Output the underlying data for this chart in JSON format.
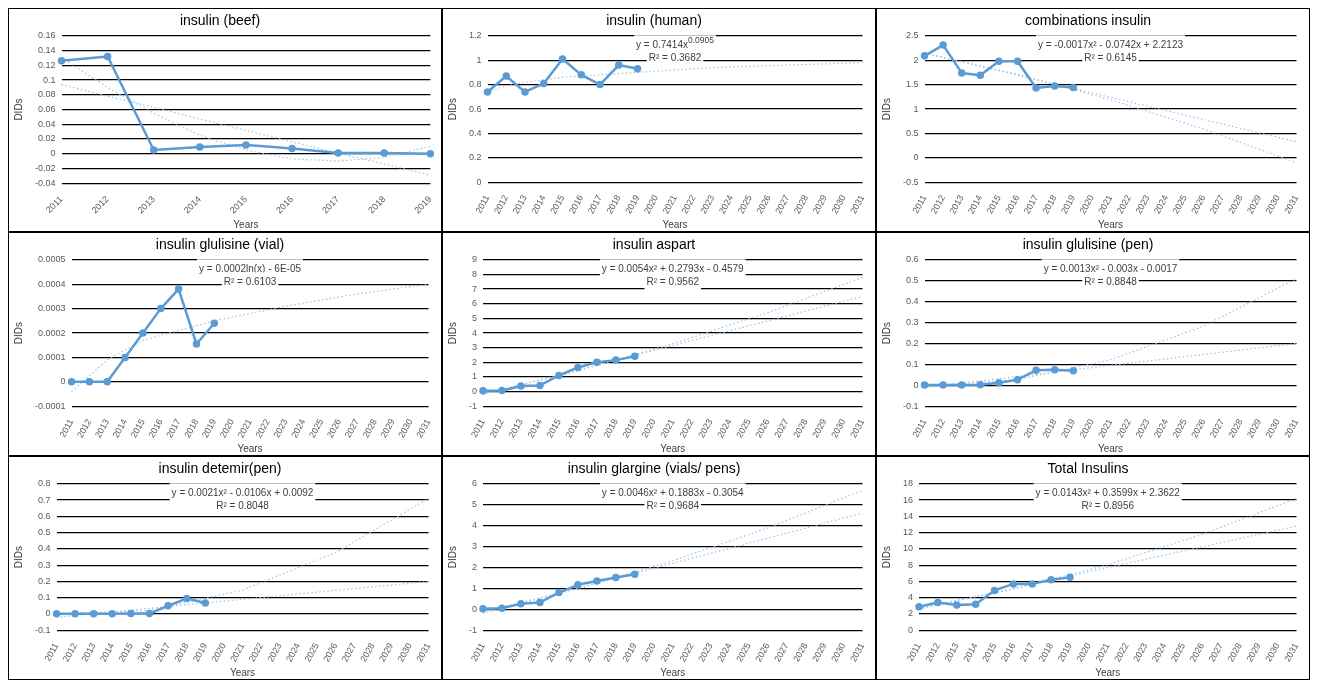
{
  "chart_data": [
    {
      "type": "line",
      "title": "insulin (beef)",
      "xlabel": "Years",
      "ylabel": "DIDs",
      "grid": "y",
      "legend": false,
      "categories": [
        "2011",
        "2012",
        "2013",
        "2014",
        "2015",
        "2016",
        "2017",
        "2018",
        "2019"
      ],
      "ylim": [
        -0.04,
        0.16
      ],
      "yticks": [
        -0.04,
        -0.02,
        0,
        0.02,
        0.04,
        0.06,
        0.08,
        0.1,
        0.12,
        0.14,
        0.16
      ],
      "series": [
        {
          "color": "#5b9bd5",
          "marker": "circle",
          "line_style": "solid",
          "values": [
            0.126,
            0.132,
            0.005,
            0.009,
            0.012,
            0.007,
            0.001,
            0.001,
            0
          ]
        },
        {
          "type": "line",
          "color": "#9dc3e6",
          "marker": "none",
          "line_style": "dotted",
          "values": [
            0.13,
            0.09,
            0.055,
            0.025,
            0.005,
            -0.007,
            -0.01,
            -0.005,
            0.01
          ]
        },
        {
          "type": "line",
          "color": "#9dc3e6",
          "marker": "none",
          "line_style": "dotted",
          "values": [
            0.094,
            0.078,
            0.063,
            0.047,
            0.032,
            0.016,
            0.001,
            -0.014,
            -0.029
          ]
        }
      ]
    },
    {
      "type": "line",
      "title": "insulin (human)",
      "xlabel": "Years",
      "ylabel": "DIDs",
      "grid": "y",
      "legend": false,
      "categories": [
        "2011",
        "2012",
        "2013",
        "2014",
        "2015",
        "2016",
        "2017",
        "2018",
        "2019",
        "2020",
        "2021",
        "2022",
        "2023",
        "2024",
        "2025",
        "2026",
        "2027",
        "2028",
        "2029",
        "2030",
        "2031"
      ],
      "ylim": [
        0,
        1.2
      ],
      "yticks": [
        0,
        0.2,
        0.4,
        0.6,
        0.8,
        1,
        1.2
      ],
      "annotations": [
        "y = 0.7414x$^{0.0905}$",
        "R² = 0.3682"
      ],
      "series": [
        {
          "color": "#5b9bd5",
          "marker": "circle",
          "line_style": "solid",
          "values": [
            0.74,
            0.87,
            0.74,
            0.81,
            1.01,
            0.88,
            0.8,
            0.96,
            0.93,
            null,
            null,
            null,
            null,
            null,
            null,
            null,
            null,
            null,
            null,
            null,
            null
          ]
        },
        {
          "type": "line",
          "color": "#9dc3e6",
          "marker": "none",
          "line_style": "dotted",
          "values": [
            0.74,
            0.79,
            0.82,
            null,
            0.86,
            null,
            null,
            null,
            0.9,
            null,
            null,
            null,
            0.94,
            null,
            null,
            null,
            null,
            null,
            null,
            null,
            0.98
          ]
        }
      ]
    },
    {
      "type": "line",
      "title": "combinations insulin",
      "xlabel": "Years",
      "ylabel": "DIDs",
      "grid": "y",
      "legend": false,
      "categories": [
        "2011",
        "2012",
        "2013",
        "2014",
        "2015",
        "2016",
        "2017",
        "2018",
        "2019",
        "2020",
        "2021",
        "2022",
        "2023",
        "2024",
        "2025",
        "2026",
        "2027",
        "2028",
        "2029",
        "2030",
        "2031"
      ],
      "ylim": [
        -0.5,
        2.5
      ],
      "yticks": [
        -0.5,
        0,
        0.5,
        1,
        1.5,
        2,
        2.5
      ],
      "annotations": [
        "y = -0.0017x² - 0.0742x + 2.2123",
        "R² = 0.6145"
      ],
      "series": [
        {
          "color": "#5b9bd5",
          "marker": "circle",
          "line_style": "solid",
          "values": [
            2.09,
            2.31,
            1.74,
            1.69,
            1.98,
            1.98,
            1.43,
            1.47,
            1.44,
            null,
            null,
            null,
            null,
            null,
            null,
            null,
            null,
            null,
            null,
            null,
            null
          ]
        },
        {
          "type": "line",
          "color": "#9dc3e6",
          "marker": "none",
          "line_style": "dotted",
          "values": [
            2.14,
            null,
            null,
            null,
            null,
            1.71,
            null,
            null,
            null,
            null,
            1.19,
            null,
            null,
            null,
            null,
            0.59,
            null,
            null,
            null,
            null,
            -0.1
          ]
        },
        {
          "type": "line",
          "color": "#9dc3e6",
          "marker": "none",
          "line_style": "dotted",
          "values": [
            2.15,
            null,
            null,
            null,
            null,
            null,
            null,
            null,
            null,
            null,
            null,
            null,
            null,
            null,
            null,
            null,
            null,
            null,
            null,
            null,
            0.33
          ]
        }
      ]
    },
    {
      "type": "line",
      "title": "insulin glulisine (vial)",
      "xlabel": "Years",
      "ylabel": "DIDs",
      "grid": "y",
      "legend": false,
      "categories": [
        "2011",
        "2012",
        "2013",
        "2014",
        "2015",
        "2016",
        "2017",
        "2018",
        "2019",
        "2020",
        "2021",
        "2022",
        "2023",
        "2024",
        "2025",
        "2026",
        "2027",
        "2028",
        "2029",
        "2030",
        "2031"
      ],
      "ylim": [
        -0.0001,
        0.0005
      ],
      "yticks": [
        -0.0001,
        0,
        0.0001,
        0.0002,
        0.0003,
        0.0004,
        0.0005
      ],
      "annotations": [
        "y = 0.0002ln(x) - 6E-05",
        "R² = 0.6103"
      ],
      "series": [
        {
          "color": "#5b9bd5",
          "marker": "circle",
          "line_style": "solid",
          "values": [
            0,
            0,
            0,
            0.0001,
            0.0002,
            0.0003,
            0.00038,
            0.000155,
            0.00024,
            null,
            null,
            null,
            null,
            null,
            null,
            null,
            null,
            null,
            null,
            null,
            null
          ]
        },
        {
          "type": "line",
          "color": "#9dc3e6",
          "marker": "none",
          "line_style": "dotted",
          "values": [
            -4e-05,
            null,
            9e-05,
            null,
            0.00017,
            null,
            null,
            null,
            0.00025,
            null,
            null,
            null,
            0.00031,
            null,
            null,
            null,
            0.00036,
            null,
            null,
            null,
            0.0004
          ]
        }
      ]
    },
    {
      "type": "line",
      "title": "insulin aspart",
      "xlabel": "Years",
      "ylabel": "DIDs",
      "grid": "y",
      "legend": false,
      "categories": [
        "2011",
        "2012",
        "2013",
        "2014",
        "2015",
        "2016",
        "2017",
        "2018",
        "2019",
        "2020",
        "2021",
        "2022",
        "2023",
        "2024",
        "2025",
        "2026",
        "2027",
        "2028",
        "2029",
        "2030",
        "2031"
      ],
      "ylim": [
        -1,
        9
      ],
      "yticks": [
        -1,
        0,
        1,
        2,
        3,
        4,
        5,
        6,
        7,
        8,
        9
      ],
      "annotations": [
        "y = 0.0054x² + 0.2793x - 0.4579",
        "R² = 0.9562"
      ],
      "series": [
        {
          "color": "#5b9bd5",
          "marker": "circle",
          "line_style": "solid",
          "values": [
            0.05,
            0.07,
            0.38,
            0.42,
            1.1,
            1.65,
            2,
            2.15,
            2.42,
            null,
            null,
            null,
            null,
            null,
            null,
            null,
            null,
            null,
            null,
            null,
            null
          ]
        },
        {
          "type": "line",
          "color": "#9dc3e6",
          "marker": "none",
          "line_style": "dotted",
          "values": [
            -0.17,
            null,
            null,
            null,
            null,
            1.41,
            null,
            null,
            null,
            null,
            3.27,
            null,
            null,
            null,
            null,
            5.39,
            null,
            null,
            null,
            null,
            7.8
          ]
        },
        {
          "type": "line",
          "color": "#9dc3e6",
          "marker": "none",
          "line_style": "dotted",
          "values": [
            -0.2,
            null,
            null,
            null,
            null,
            null,
            null,
            null,
            null,
            null,
            null,
            null,
            null,
            null,
            null,
            null,
            null,
            null,
            null,
            null,
            6.5
          ]
        }
      ]
    },
    {
      "type": "line",
      "title": "insulin glulisine (pen)",
      "xlabel": "Years",
      "ylabel": "DIDs",
      "grid": "y",
      "legend": false,
      "categories": [
        "2011",
        "2012",
        "2013",
        "2014",
        "2015",
        "2016",
        "2017",
        "2018",
        "2019",
        "2020",
        "2021",
        "2022",
        "2023",
        "2024",
        "2025",
        "2026",
        "2027",
        "2028",
        "2029",
        "2030",
        "2031"
      ],
      "ylim": [
        -0.1,
        0.6
      ],
      "yticks": [
        -0.1,
        0,
        0.1,
        0.2,
        0.3,
        0.4,
        0.5,
        0.6
      ],
      "annotations": [
        "y = 0.0013x² - 0.003x - 0.0017",
        "R² = 0.8848"
      ],
      "series": [
        {
          "color": "#5b9bd5",
          "marker": "circle",
          "line_style": "solid",
          "values": [
            0.002,
            0.002,
            0.002,
            0.003,
            0.012,
            0.027,
            0.072,
            0.075,
            0.07,
            null,
            null,
            null,
            null,
            null,
            null,
            null,
            null,
            null,
            null,
            null,
            null
          ]
        },
        {
          "type": "line",
          "color": "#9dc3e6",
          "marker": "none",
          "line_style": "dotted",
          "values": [
            -0.003,
            null,
            null,
            null,
            null,
            0.027,
            null,
            null,
            null,
            null,
            0.122,
            null,
            null,
            null,
            null,
            0.283,
            null,
            null,
            null,
            null,
            0.51
          ]
        },
        {
          "type": "line",
          "color": "#9dc3e6",
          "marker": "none",
          "line_style": "dotted",
          "values": [
            -0.01,
            null,
            null,
            null,
            null,
            null,
            null,
            null,
            null,
            null,
            null,
            null,
            null,
            null,
            null,
            null,
            null,
            null,
            null,
            null,
            0.2
          ]
        }
      ]
    },
    {
      "type": "line",
      "title": "insulin detemir(pen)",
      "xlabel": "Years",
      "ylabel": "DIDs",
      "grid": "y",
      "legend": false,
      "categories": [
        "2011",
        "2012",
        "2013",
        "2014",
        "2015",
        "2016",
        "2017",
        "2018",
        "2019",
        "2020",
        "2021",
        "2022",
        "2023",
        "2024",
        "2025",
        "2026",
        "2027",
        "2028",
        "2029",
        "2030",
        "2031"
      ],
      "ylim": [
        -0.1,
        0.8
      ],
      "yticks": [
        -0.1,
        0,
        0.1,
        0.2,
        0.3,
        0.4,
        0.5,
        0.6,
        0.7,
        0.8
      ],
      "annotations": [
        "y = 0.0021x² - 0.0106x + 0.0092",
        "R² = 0.8048"
      ],
      "series": [
        {
          "color": "#5b9bd5",
          "marker": "circle",
          "line_style": "solid",
          "values": [
            0.002,
            0.002,
            0.002,
            0.002,
            0.003,
            0.003,
            0.05,
            0.095,
            0.068,
            null,
            null,
            null,
            null,
            null,
            null,
            null,
            null,
            null,
            null,
            null,
            null
          ]
        },
        {
          "type": "line",
          "color": "#9dc3e6",
          "marker": "none",
          "line_style": "dotted",
          "values": [
            0.001,
            null,
            null,
            null,
            null,
            0.021,
            null,
            null,
            null,
            null,
            0.147,
            null,
            null,
            null,
            null,
            0.377,
            null,
            null,
            null,
            null,
            0.71
          ]
        },
        {
          "type": "line",
          "color": "#9dc3e6",
          "marker": "none",
          "line_style": "dotted",
          "values": [
            -0.02,
            null,
            null,
            null,
            null,
            null,
            null,
            null,
            null,
            null,
            null,
            null,
            null,
            null,
            null,
            null,
            null,
            null,
            null,
            null,
            0.2
          ]
        }
      ]
    },
    {
      "type": "line",
      "title": "insulin glargine (vials/ pens)",
      "xlabel": "Years",
      "ylabel": "DIDs",
      "grid": "y",
      "legend": false,
      "categories": [
        "2011",
        "2012",
        "2013",
        "2014",
        "2015",
        "2016",
        "2017",
        "2018",
        "2019",
        "2020",
        "2021",
        "2022",
        "2023",
        "2024",
        "2025",
        "2026",
        "2027",
        "2028",
        "2029",
        "2030",
        "2031"
      ],
      "ylim": [
        -1,
        6
      ],
      "yticks": [
        -1,
        0,
        1,
        2,
        3,
        4,
        5,
        6
      ],
      "annotations": [
        "y = 0.0046x² + 0.1883x - 0.3054",
        "R² = 0.9684"
      ],
      "series": [
        {
          "color": "#5b9bd5",
          "marker": "circle",
          "line_style": "solid",
          "values": [
            0.03,
            0.05,
            0.27,
            0.33,
            0.8,
            1.17,
            1.35,
            1.52,
            1.68,
            null,
            null,
            null,
            null,
            null,
            null,
            null,
            null,
            null,
            null,
            null,
            null
          ]
        },
        {
          "type": "line",
          "color": "#9dc3e6",
          "marker": "none",
          "line_style": "dotted",
          "values": [
            -0.11,
            null,
            null,
            null,
            null,
            0.99,
            null,
            null,
            null,
            null,
            2.32,
            null,
            null,
            null,
            null,
            3.89,
            null,
            null,
            null,
            null,
            5.68
          ]
        },
        {
          "type": "line",
          "color": "#9dc3e6",
          "marker": "none",
          "line_style": "dotted",
          "values": [
            -0.2,
            null,
            null,
            null,
            null,
            null,
            null,
            null,
            null,
            null,
            null,
            null,
            null,
            null,
            null,
            null,
            null,
            null,
            null,
            null,
            4.6
          ]
        }
      ]
    },
    {
      "type": "line",
      "title": "Total Insulins",
      "xlabel": "Years",
      "ylabel": "DIDs",
      "grid": "y",
      "legend": false,
      "categories": [
        "2011",
        "2012",
        "2013",
        "2014",
        "2015",
        "2016",
        "2017",
        "2018",
        "2019",
        "2020",
        "2021",
        "2022",
        "2023",
        "2024",
        "2025",
        "2026",
        "2027",
        "2028",
        "2029",
        "2030",
        "2031"
      ],
      "ylim": [
        0,
        18
      ],
      "yticks": [
        0,
        2,
        4,
        6,
        8,
        10,
        12,
        14,
        16,
        18
      ],
      "annotations": [
        "y = 0.0143x² + 0.3599x + 2.3622",
        "R² = 0.8956"
      ],
      "series": [
        {
          "color": "#5b9bd5",
          "marker": "circle",
          "line_style": "solid",
          "values": [
            2.9,
            3.4,
            3.1,
            3.2,
            4.9,
            5.7,
            5.7,
            6.2,
            6.5,
            null,
            null,
            null,
            null,
            null,
            null,
            null,
            null,
            null,
            null,
            null,
            null
          ]
        },
        {
          "type": "line",
          "color": "#9dc3e6",
          "marker": "none",
          "line_style": "dotted",
          "values": [
            2.74,
            null,
            null,
            null,
            null,
            5.04,
            null,
            null,
            null,
            null,
            8.05,
            null,
            null,
            null,
            null,
            11.78,
            null,
            null,
            null,
            null,
            16.2
          ]
        },
        {
          "type": "line",
          "color": "#9dc3e6",
          "marker": "none",
          "line_style": "dotted",
          "values": [
            2.6,
            null,
            null,
            null,
            null,
            null,
            null,
            null,
            null,
            null,
            null,
            null,
            null,
            null,
            null,
            null,
            null,
            null,
            null,
            null,
            12.8
          ]
        }
      ]
    }
  ]
}
